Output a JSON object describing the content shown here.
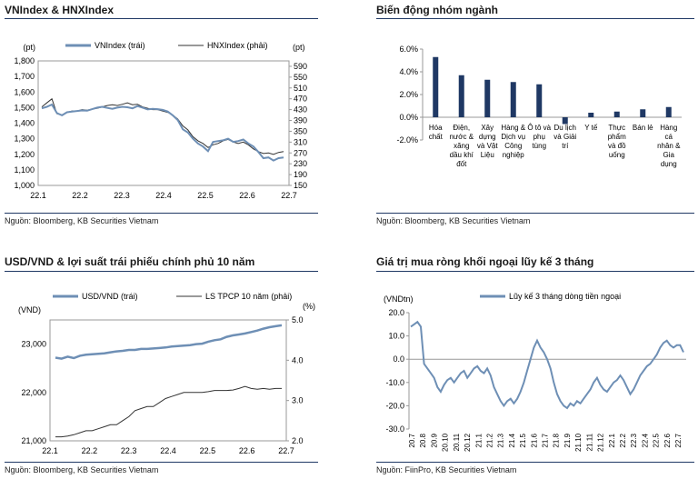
{
  "panels": {
    "p1": {
      "title": "VNIndex & HNXIndex",
      "source": "Nguồn: Bloomberg, KB Securities Vietnam"
    },
    "p2": {
      "title": "Biến động nhóm ngành",
      "source": "Nguồn: Bloomberg, KB Securities Vietnam"
    },
    "p3": {
      "title": "USD/VND & lợi suất trái phiếu chính phủ 10 năm",
      "source": "Nguồn: Bloomberg, KB Securities Vietnam"
    },
    "p4": {
      "title": "Giá trị mua ròng khối ngoại lũy kế 3 tháng",
      "source": "Nguồn: FiinPro, KB Securities Vietnam"
    }
  },
  "colors": {
    "blue": "#6e8fb5",
    "dark": "#333333",
    "navy": "#1f3864",
    "rule": "#1f3864"
  },
  "chart_data": [
    {
      "id": "vnindex",
      "type": "line",
      "ylabel_left": "(pt)",
      "ylabel_right": "(pt)",
      "ylim_left": [
        1000,
        1800
      ],
      "ylim_right": [
        150,
        610
      ],
      "yticks_left": [
        "1,000",
        "1,100",
        "1,200",
        "1,300",
        "1,400",
        "1,500",
        "1,600",
        "1,700",
        "1,800"
      ],
      "yticks_right": [
        "150",
        "190",
        "230",
        "270",
        "310",
        "350",
        "390",
        "430",
        "470",
        "510",
        "550",
        "590"
      ],
      "xticks": [
        "22.1",
        "22.2",
        "22.3",
        "22.4",
        "22.5",
        "22.6",
        "22.7"
      ],
      "legend_position": "top",
      "series": [
        {
          "name": "VNIndex (trái)",
          "axis": "left",
          "color": "#6e8fb5",
          "values": [
            1495,
            1505,
            1520,
            1465,
            1450,
            1470,
            1475,
            1478,
            1482,
            1480,
            1490,
            1500,
            1505,
            1498,
            1492,
            1500,
            1505,
            1502,
            1495,
            1510,
            1500,
            1488,
            1492,
            1490,
            1485,
            1475,
            1450,
            1420,
            1360,
            1340,
            1300,
            1270,
            1250,
            1220,
            1280,
            1285,
            1290,
            1300,
            1280,
            1285,
            1295,
            1270,
            1250,
            1215,
            1175,
            1180,
            1160,
            1175,
            1180
          ]
        },
        {
          "name": "HNXIndex (phải)",
          "axis": "right",
          "color": "#333333",
          "values": [
            440,
            455,
            470,
            415,
            410,
            420,
            425,
            425,
            430,
            428,
            432,
            435,
            440,
            445,
            448,
            445,
            450,
            455,
            448,
            450,
            440,
            435,
            430,
            430,
            425,
            420,
            410,
            395,
            370,
            355,
            330,
            315,
            305,
            290,
            300,
            305,
            315,
            320,
            310,
            305,
            310,
            300,
            285,
            275,
            268,
            270,
            265,
            272,
            275
          ]
        }
      ]
    },
    {
      "id": "sectors",
      "type": "bar",
      "ylim": [
        -2,
        6
      ],
      "yticks": [
        "-2.0%",
        "0.0%",
        "2.0%",
        "4.0%",
        "6.0%"
      ],
      "color": "#1f3864",
      "categories": [
        [
          "Hóa",
          "chất"
        ],
        [
          "Điện,",
          "nước &",
          "xăng",
          "dầu khí",
          "đốt"
        ],
        [
          "Xây",
          "dựng",
          "và Vật",
          "Liệu"
        ],
        [
          "Hàng &",
          "Dịch vụ",
          "Công",
          "nghiệp"
        ],
        [
          "Ô tô và",
          "phụ",
          "tùng"
        ],
        [
          "Du lịch",
          "và Giải",
          "trí"
        ],
        [
          "Y tế"
        ],
        [
          "Thực",
          "phẩm",
          "và đồ",
          "uống"
        ],
        [
          "Bán lẻ"
        ],
        [
          "Hàng",
          "cá",
          "nhân &",
          "Gia",
          "dụng"
        ]
      ],
      "values": [
        5.3,
        3.7,
        3.3,
        3.1,
        2.9,
        -0.6,
        0.4,
        0.5,
        0.7,
        0.9
      ]
    },
    {
      "id": "usdvnd",
      "type": "line",
      "ylabel_left": "(VND)",
      "ylabel_right": "(%)",
      "ylim_left": [
        21000,
        23500
      ],
      "ylim_right": [
        2.0,
        5.0
      ],
      "yticks_left": [
        "21,000",
        "22,000",
        "23,000"
      ],
      "yticks_right": [
        "2.0",
        "3.0",
        "4.0",
        "5.0"
      ],
      "xticks": [
        "22.1",
        "22.2",
        "22.3",
        "22.4",
        "22.5",
        "22.6",
        "22.7"
      ],
      "legend_position": "top",
      "series": [
        {
          "name": "USD/VND (trái)",
          "axis": "left",
          "color": "#6e8fb5",
          "values": [
            22720,
            22700,
            22740,
            22710,
            22760,
            22780,
            22790,
            22800,
            22810,
            22830,
            22850,
            22860,
            22880,
            22880,
            22900,
            22900,
            22910,
            22920,
            22930,
            22950,
            22960,
            22970,
            22980,
            23000,
            23010,
            23050,
            23080,
            23100,
            23150,
            23180,
            23200,
            23220,
            23250,
            23280,
            23320,
            23350,
            23370,
            23390
          ]
        },
        {
          "name": "LS TPCP 10 năm (phải)",
          "axis": "right",
          "color": "#333333",
          "values": [
            2.1,
            2.1,
            2.12,
            2.15,
            2.2,
            2.25,
            2.25,
            2.3,
            2.35,
            2.4,
            2.4,
            2.5,
            2.6,
            2.75,
            2.8,
            2.85,
            2.85,
            2.95,
            3.05,
            3.1,
            3.15,
            3.2,
            3.2,
            3.2,
            3.2,
            3.22,
            3.25,
            3.25,
            3.25,
            3.26,
            3.3,
            3.35,
            3.3,
            3.28,
            3.3,
            3.28,
            3.3,
            3.3
          ]
        }
      ]
    },
    {
      "id": "foreign",
      "type": "line",
      "ylabel": "(VNDtn)",
      "ylim": [
        -30,
        20
      ],
      "yticks": [
        "-30.0",
        "-20.0",
        "-10.0",
        "0.0",
        "10.0",
        "20.0"
      ],
      "xticks": [
        "20.7",
        "20.8",
        "20.9",
        "20.10",
        "20.11",
        "20.12",
        "21.1",
        "21.2",
        "21.3",
        "21.4",
        "21.5",
        "21.6",
        "21.7",
        "21.8",
        "21.9",
        "21.10",
        "21.11",
        "21.12",
        "22.1",
        "22.2",
        "22.3",
        "22.4",
        "22.5",
        "22.6",
        "22.7"
      ],
      "legend_position": "top",
      "series": [
        {
          "name": "Lũy kế 3 tháng dòng tiền ngoại",
          "color": "#6e8fb5",
          "values": [
            14,
            15,
            16,
            14,
            -2,
            -4,
            -6,
            -8,
            -12,
            -14,
            -11,
            -9,
            -8,
            -10,
            -8,
            -6,
            -5,
            -8,
            -6,
            -4,
            -3,
            -5,
            -6,
            -4,
            -7,
            -12,
            -15,
            -18,
            -20,
            -18,
            -17,
            -19,
            -17,
            -14,
            -10,
            -5,
            0,
            5,
            8,
            5,
            3,
            0,
            -4,
            -10,
            -15,
            -18,
            -20,
            -21,
            -19,
            -20,
            -18,
            -19,
            -17,
            -15,
            -13,
            -10,
            -8,
            -11,
            -13,
            -14,
            -12,
            -10,
            -9,
            -7,
            -9,
            -12,
            -15,
            -13,
            -10,
            -7,
            -5,
            -3,
            -2,
            0,
            2,
            5,
            7,
            8,
            6,
            5,
            6,
            6,
            3
          ]
        }
      ]
    }
  ]
}
